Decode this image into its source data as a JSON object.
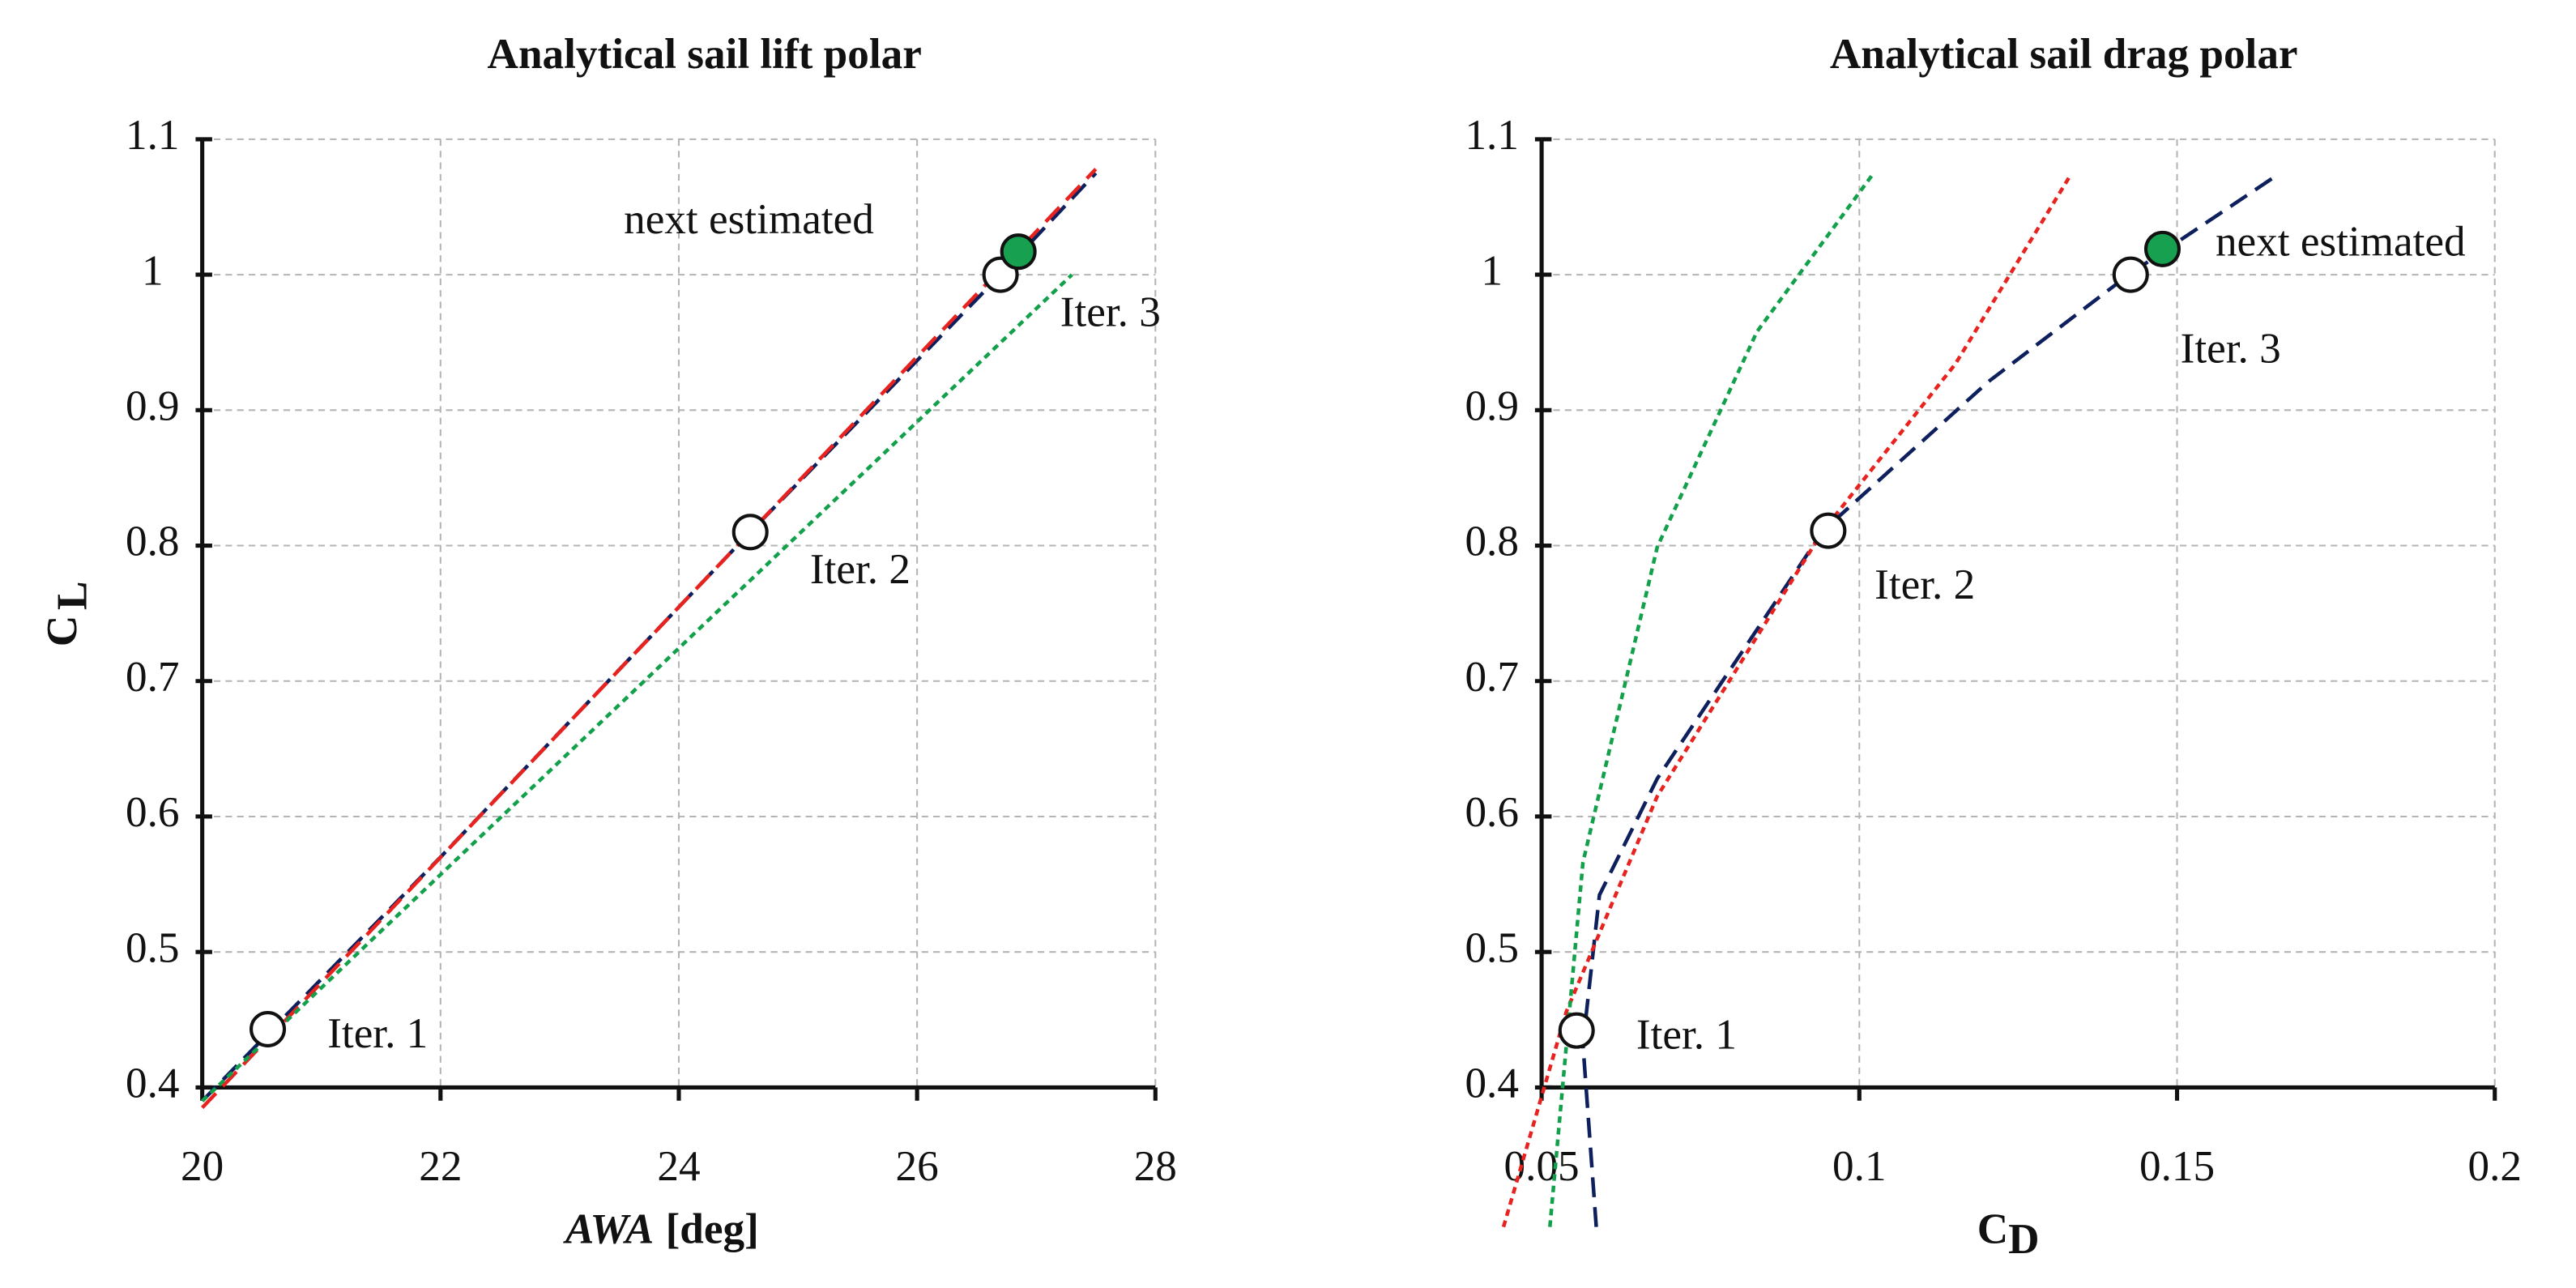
{
  "chart_data": [
    {
      "type": "line",
      "title": "Analytical sail lift polar",
      "xlabel": "AWA",
      "xlabel_unit": "[deg]",
      "ylabel": "C",
      "ylabel_sub": "L",
      "xlim": [
        20,
        28
      ],
      "ylim": [
        0.4,
        1.1
      ],
      "xticks": [
        20,
        22,
        24,
        26,
        28
      ],
      "yticks": [
        0.4,
        0.5,
        0.6,
        0.7,
        0.8,
        0.9,
        1,
        1.1
      ],
      "grid": true,
      "series": [
        {
          "color": "#0d1f5c",
          "style": "dashed",
          "x": [
            20,
            22,
            24.6,
            26.7,
            27.5
          ],
          "values": [
            0.39,
            0.57,
            0.81,
            1.0,
            1.075
          ]
        },
        {
          "color": "#e8221e",
          "style": "dashed",
          "x": [
            20,
            27.5
          ],
          "values": [
            0.385,
            1.078
          ]
        },
        {
          "color": "#12a04a",
          "style": "dotted",
          "x": [
            20,
            27.3
          ],
          "values": [
            0.39,
            1.0
          ]
        }
      ],
      "points": [
        {
          "label": "Iter. 1",
          "x": 20.55,
          "y": 0.443,
          "filled": false
        },
        {
          "label": "Iter. 2",
          "x": 24.6,
          "y": 0.81,
          "filled": false
        },
        {
          "label": "Iter. 3",
          "x": 26.7,
          "y": 1.0,
          "filled": false
        },
        {
          "label": "next estimated",
          "x": 26.85,
          "y": 1.017,
          "filled": true,
          "color": "#16a050"
        }
      ]
    },
    {
      "type": "line",
      "title": "Analytical sail drag polar",
      "xlabel": "C",
      "xlabel_sub": "D",
      "ylabel": "C",
      "ylabel_sub": "L",
      "xlim": [
        0.05,
        0.2
      ],
      "ylim": [
        0.4,
        1.1
      ],
      "xticks": [
        0.05,
        0.1,
        0.15,
        0.2
      ],
      "yticks": [
        0.4,
        0.5,
        0.6,
        0.7,
        0.8,
        0.9,
        1,
        1.1
      ],
      "grid": true,
      "series": [
        {
          "color": "#0d1f5c",
          "style": "dashed",
          "x": [
            0.0586,
            0.0565,
            0.0591,
            0.0682,
            0.0943,
            0.1203,
            0.1424,
            0.1659
          ],
          "values": [
            0.297,
            0.432,
            0.542,
            0.628,
            0.811,
            0.921,
            1.0,
            1.074
          ]
        },
        {
          "color": "#e8221e",
          "style": "dotted",
          "x": [
            0.044,
            0.0539,
            0.0682,
            0.0943,
            0.1151,
            0.1333
          ],
          "values": [
            0.297,
            0.456,
            0.615,
            0.811,
            0.934,
            1.074
          ]
        },
        {
          "color": "#12a04a",
          "style": "dotted",
          "x": [
            0.0513,
            0.0565,
            0.0682,
            0.0839,
            0.1021
          ],
          "values": [
            0.297,
            0.566,
            0.799,
            0.958,
            1.074
          ]
        }
      ],
      "points": [
        {
          "label": "Iter. 1",
          "x": 0.0555,
          "y": 0.442,
          "filled": false
        },
        {
          "label": "Iter. 2",
          "x": 0.0951,
          "y": 0.811,
          "filled": false
        },
        {
          "label": "Iter. 3",
          "x": 0.1427,
          "y": 1.0,
          "filled": false
        },
        {
          "label": "next estimated",
          "x": 0.1477,
          "y": 1.019,
          "filled": true,
          "color": "#16a050"
        }
      ]
    }
  ]
}
